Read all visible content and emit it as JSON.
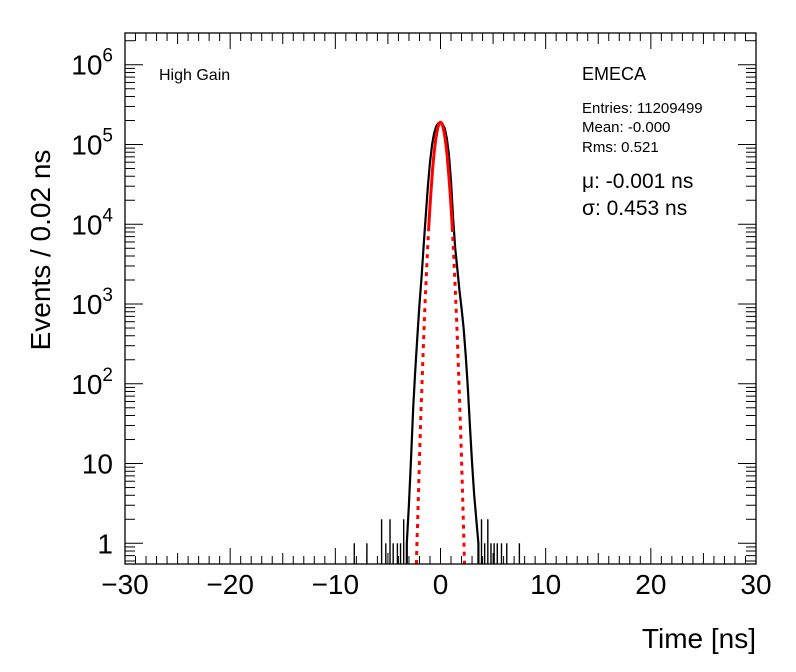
{
  "chart_data": {
    "type": "line",
    "title": "",
    "xlabel": "Time [ns]",
    "ylabel": "Events / 0.02 ns",
    "xlim": [
      -30,
      30
    ],
    "ylim": [
      0.55,
      2500000
    ],
    "yscale": "log",
    "grid": false,
    "xticks": [
      {
        "value": -30,
        "label": "−30"
      },
      {
        "value": -20,
        "label": "−20"
      },
      {
        "value": -10,
        "label": "−10"
      },
      {
        "value": 0,
        "label": "0"
      },
      {
        "value": 10,
        "label": "10"
      },
      {
        "value": 20,
        "label": "20"
      },
      {
        "value": 30,
        "label": "30"
      }
    ],
    "yticks": [
      {
        "value": 1,
        "base": "1",
        "exp": ""
      },
      {
        "value": 10,
        "base": "10",
        "exp": ""
      },
      {
        "value": 100,
        "base": "10",
        "exp": "2"
      },
      {
        "value": 1000,
        "base": "10",
        "exp": "3"
      },
      {
        "value": 10000,
        "base": "10",
        "exp": "4"
      },
      {
        "value": 100000,
        "base": "10",
        "exp": "5"
      },
      {
        "value": 1000000,
        "base": "10",
        "exp": "6"
      }
    ],
    "annotations": {
      "left": "High Gain",
      "detector": "EMECA",
      "entries": "Entries: 11209499",
      "mean": "Mean: -0.000",
      "rms": "Rms: 0.521",
      "mu": "μ: -0.001 ns",
      "sigma": "σ: 0.453 ns"
    },
    "series": [
      {
        "style": "histogram",
        "color": "#000000",
        "x": [
          -3.2,
          -3.0,
          -2.8,
          -2.6,
          -2.4,
          -2.2,
          -2.0,
          -1.8,
          -1.6,
          -1.4,
          -1.2,
          -1.0,
          -0.8,
          -0.6,
          -0.4,
          -0.2,
          0.0,
          0.2,
          0.4,
          0.6,
          0.8,
          1.0,
          1.2,
          1.4,
          1.6,
          1.8,
          2.0,
          2.2,
          2.4,
          2.6,
          2.8,
          3.0,
          3.2,
          3.4,
          3.6
        ],
        "y": [
          1,
          3,
          12,
          50,
          150,
          400,
          1000,
          2200,
          5500,
          13000,
          30000,
          60000,
          100000,
          140000,
          170000,
          185000,
          190000,
          180000,
          160000,
          120000,
          75000,
          35000,
          12000,
          5000,
          2800,
          1500,
          900,
          500,
          230,
          90,
          30,
          10,
          4,
          2,
          1
        ]
      },
      {
        "style": "fit",
        "color": "#ff0000",
        "mu": -0.001,
        "sigma": 0.453,
        "amplitude": 190000
      }
    ],
    "tail_spikes": [
      {
        "x": -8.2,
        "y": 1
      },
      {
        "x": -7.0,
        "y": 1
      },
      {
        "x": -5.6,
        "y": 2
      },
      {
        "x": -5.2,
        "y": 1
      },
      {
        "x": -4.8,
        "y": 2
      },
      {
        "x": -4.5,
        "y": 1
      },
      {
        "x": -4.1,
        "y": 1
      },
      {
        "x": -3.8,
        "y": 1
      },
      {
        "x": -3.5,
        "y": 2
      },
      {
        "x": 3.9,
        "y": 2
      },
      {
        "x": 4.2,
        "y": 1
      },
      {
        "x": 4.5,
        "y": 2
      },
      {
        "x": 4.8,
        "y": 1
      },
      {
        "x": 5.1,
        "y": 1
      },
      {
        "x": 5.4,
        "y": 1
      },
      {
        "x": 5.8,
        "y": 1
      },
      {
        "x": 6.3,
        "y": 1
      },
      {
        "x": 7.5,
        "y": 1
      }
    ]
  }
}
